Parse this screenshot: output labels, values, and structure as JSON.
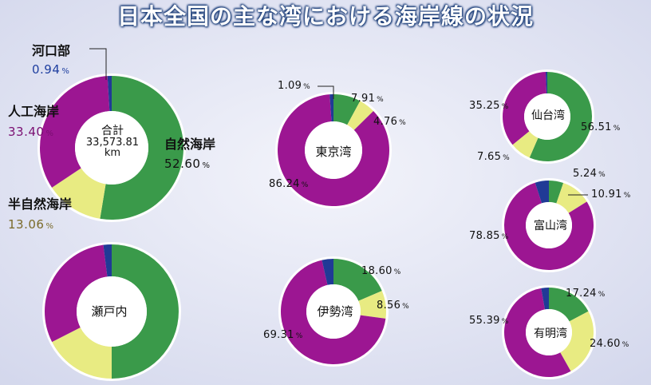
{
  "title": "日本全国の主な湾における海岸線の状況",
  "colors": {
    "natural": "#3a9a4a",
    "semi_natural": "#e8eb82",
    "artificial": "#9c1692",
    "estuary": "#203a96",
    "ring_outline": "#ffffff"
  },
  "legend": {
    "estuary": {
      "name": "河口部",
      "value": "0.94",
      "unit": "%"
    },
    "artificial": {
      "name": "人工海岸",
      "value": "33.40",
      "unit": "%"
    },
    "natural": {
      "name": "自然海岸",
      "value": "52.60",
      "unit": "%"
    },
    "semi_natural": {
      "name": "半自然海岸",
      "value": "13.06",
      "unit": "%"
    }
  },
  "total": {
    "label": "合計",
    "value": "33,573.81",
    "unit": "km"
  },
  "chart_data": {
    "type": "pie",
    "variant": "donut",
    "title": "日本全国の主な湾における海岸線の状況",
    "categories": [
      "自然海岸",
      "半自然海岸",
      "人工海岸",
      "河口部"
    ],
    "unit": "%",
    "charts": [
      {
        "id": "total",
        "center_label": "合計",
        "values": [
          52.6,
          13.06,
          33.4,
          0.94
        ],
        "labels": [
          "52.60",
          "13.06",
          "33.40",
          "0.94"
        ]
      },
      {
        "id": "tokyo",
        "center_label": "東京湾",
        "values": [
          7.91,
          4.76,
          86.24,
          1.09
        ],
        "labels": [
          "7.91",
          "4.76",
          "86.24",
          "1.09"
        ]
      },
      {
        "id": "sendai",
        "center_label": "仙台湾",
        "values": [
          56.51,
          7.65,
          35.25,
          0.59
        ],
        "labels": [
          "56.51",
          "7.65",
          "35.25",
          ""
        ]
      },
      {
        "id": "toyama",
        "center_label": "富山湾",
        "values": [
          5.24,
          10.91,
          78.85,
          5.0
        ],
        "labels": [
          "5.24",
          "10.91",
          "78.85",
          ""
        ]
      },
      {
        "id": "setonaikai",
        "center_label": "瀬戸内",
        "values": [
          50.0,
          17.5,
          30.5,
          2.0
        ],
        "labels": [
          "",
          "",
          "",
          ""
        ]
      },
      {
        "id": "ise",
        "center_label": "伊勢湾",
        "values": [
          18.6,
          8.56,
          69.31,
          3.53
        ],
        "labels": [
          "18.60",
          "8.56",
          "69.31",
          ""
        ]
      },
      {
        "id": "ariake",
        "center_label": "有明湾",
        "values": [
          17.24,
          24.6,
          55.39,
          2.77
        ],
        "labels": [
          "17.24",
          "24.60",
          "55.39",
          ""
        ]
      }
    ]
  }
}
